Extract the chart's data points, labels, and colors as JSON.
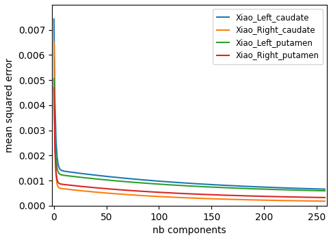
{
  "title": "",
  "xlabel": "nb components",
  "ylabel": "mean squared error",
  "xlim": [
    -2,
    260
  ],
  "ylim": [
    0,
    0.008
  ],
  "legend_labels": [
    "Xiao_Left_caudate",
    "Xiao_Right_caudate",
    "Xiao_Left_putamen",
    "Xiao_Right_putamen"
  ],
  "colors": [
    "#1f77b4",
    "#ff7f0e",
    "#2ca02c",
    "#d62728"
  ],
  "n_points": 259,
  "curves": {
    "blue": {
      "a1": 0.006,
      "b1": 0.8,
      "a2": 0.00095,
      "b2": 0.0065,
      "c": 0.00048
    },
    "orange": {
      "a1": 0.0058,
      "b1": 1.2,
      "a2": 0.0006,
      "b2": 0.009,
      "c": 0.00012
    },
    "green": {
      "a1": 0.0038,
      "b1": 0.9,
      "a2": 0.0008,
      "b2": 0.007,
      "c": 0.00046
    },
    "red": {
      "a1": 0.0038,
      "b1": 1.05,
      "a2": 0.00065,
      "b2": 0.008,
      "c": 0.00024
    }
  },
  "xticks": [
    0,
    50,
    100,
    150,
    200,
    250
  ],
  "yticks": [
    0.0,
    0.001,
    0.002,
    0.003,
    0.004,
    0.005,
    0.006,
    0.007
  ],
  "figsize": [
    4.85,
    3.51
  ],
  "dpi": 100,
  "linewidth": 1.5,
  "legend_fontsize": 8.5,
  "axis_fontsize": 10
}
